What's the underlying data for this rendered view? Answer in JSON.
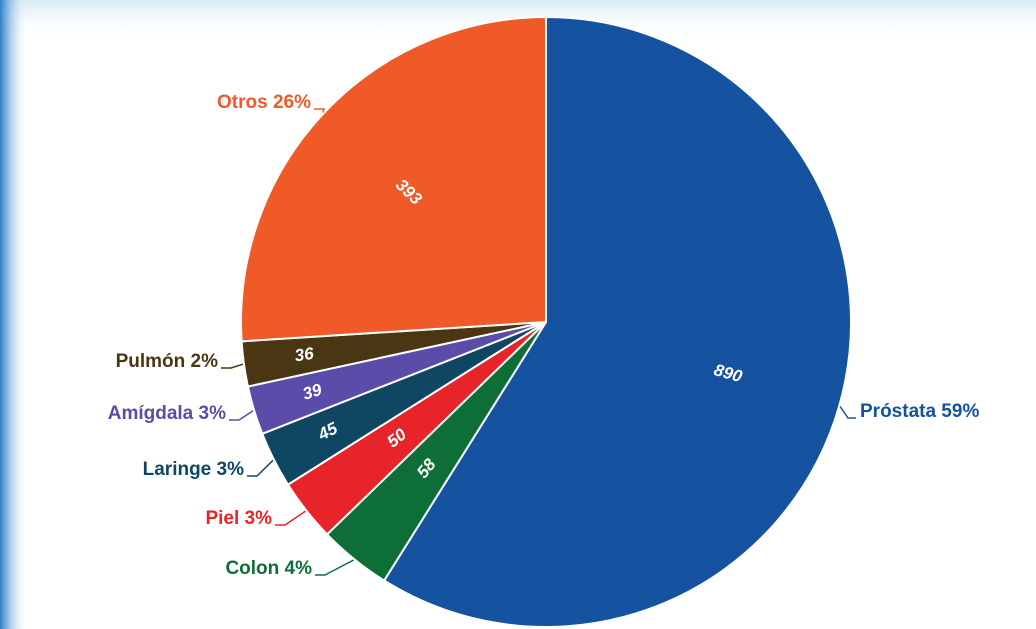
{
  "chart_data": {
    "type": "pie",
    "slices": [
      {
        "label": "Próstata 59%",
        "value": 890,
        "value_label": "890",
        "color": "#1553A1"
      },
      {
        "label": "Colon 4%",
        "value": 58,
        "value_label": "58",
        "color": "#0E6E38"
      },
      {
        "label": "Piel 3%",
        "value": 50,
        "value_label": "50",
        "color": "#E8242B"
      },
      {
        "label": "Laringe 3%",
        "value": 45,
        "value_label": "45",
        "color": "#0F4763"
      },
      {
        "label": "Amígdala 3%",
        "value": 39,
        "value_label": "39",
        "color": "#5A4CA8"
      },
      {
        "label": "Pulmón 2%",
        "value": 36,
        "value_label": "36",
        "color": "#4A3613"
      },
      {
        "label": "Otros 26%",
        "value": 393,
        "value_label": "393",
        "color": "#F05A28"
      }
    ]
  }
}
